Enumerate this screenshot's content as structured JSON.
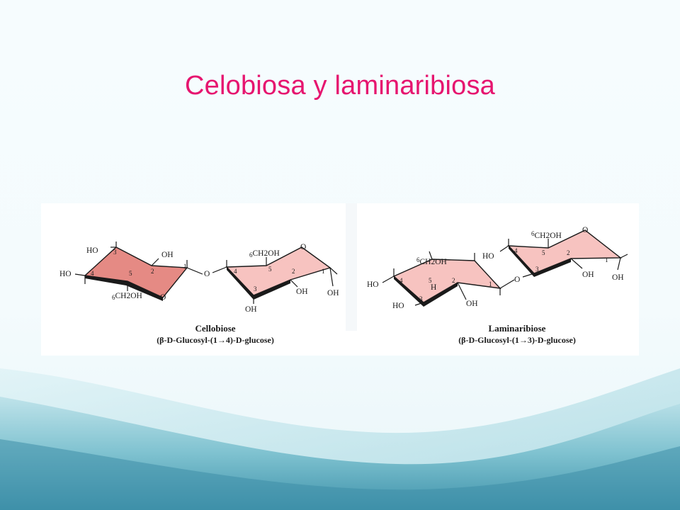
{
  "slide": {
    "title": "Celobiosa y laminaribiosa"
  },
  "colors": {
    "title": "#e6156f",
    "ring_dark": "#e58a84",
    "ring_light": "#f7c3c0",
    "ring_edge": "#1a1a1a"
  },
  "cellobiose": {
    "name": "Cellobiose",
    "linkage": "(β-D-Glucosyl-(1→4)-D-glucose)",
    "ring1": {
      "labels": {
        "ho_top": "HO",
        "oh_top": "OH",
        "ho_left": "HO",
        "ch2oh": "CH2OH",
        "ring_o": "O"
      },
      "numbers": [
        "1",
        "2",
        "3",
        "4",
        "5",
        "6"
      ]
    },
    "bridge_o": "O",
    "ring2": {
      "labels": {
        "ch2oh": "CH2OH",
        "ring_o": "O",
        "oh_bottom": "OH",
        "oh_mid": "OH",
        "oh_anomeric": "OH"
      },
      "numbers": [
        "1",
        "2",
        "3",
        "4",
        "5",
        "6"
      ]
    }
  },
  "laminaribiose": {
    "name": "Laminaribiose",
    "linkage": "(β-D-Glucosyl-(1→3)-D-glucose)",
    "ring1": {
      "labels": {
        "ch2oh": "CH2OH",
        "ho_left": "HO",
        "h": "H",
        "ho_bottom": "HO",
        "oh_bottom": "OH"
      },
      "numbers": [
        "1",
        "2",
        "3",
        "4",
        "5",
        "6"
      ]
    },
    "bridge_o": "O",
    "ring2": {
      "labels": {
        "ho_left": "HO",
        "ch2oh": "CH2OH",
        "ring_o": "O",
        "oh_mid": "OH",
        "oh_anomeric": "OH"
      },
      "numbers": [
        "1",
        "2",
        "3",
        "4",
        "5",
        "6"
      ]
    }
  }
}
